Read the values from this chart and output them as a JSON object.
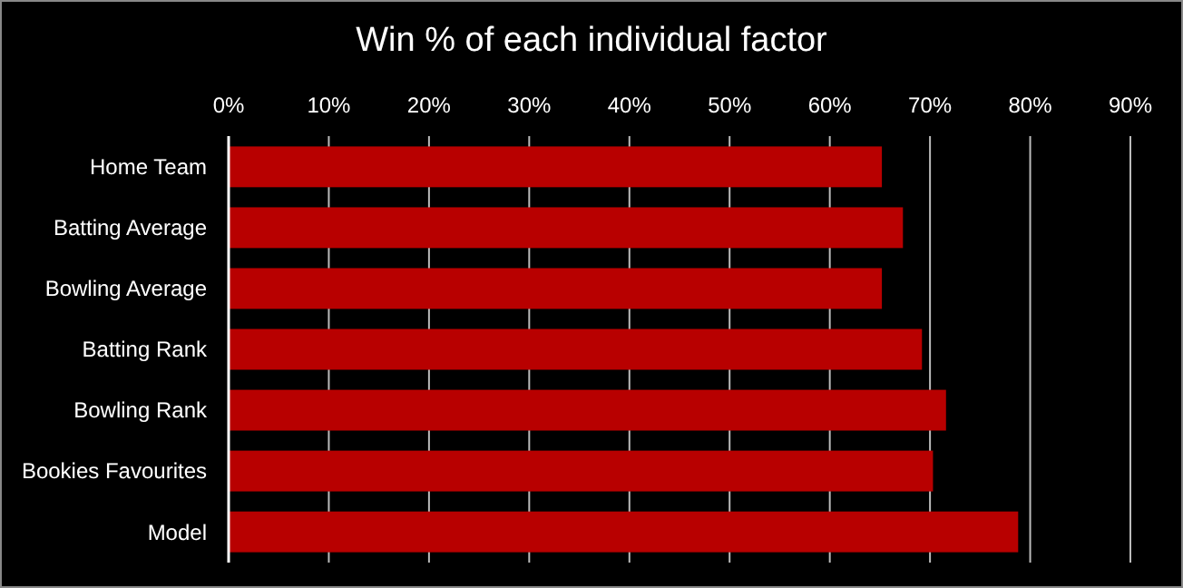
{
  "chart_data": {
    "type": "bar",
    "orientation": "horizontal",
    "title": "Win % of each individual factor",
    "categories": [
      "Home Team",
      "Batting Average",
      "Bowling Average",
      "Batting Rank",
      "Bowling Rank",
      "Bookies Favourites",
      "Model"
    ],
    "values": [
      65.2,
      67.3,
      65.2,
      69.2,
      71.6,
      70.3,
      78.8
    ],
    "color": "#b80000",
    "xlim": [
      0,
      90
    ],
    "xticks": [
      {
        "value": 0,
        "label": "0%"
      },
      {
        "value": 10,
        "label": "10%"
      },
      {
        "value": 20,
        "label": "20%"
      },
      {
        "value": 30,
        "label": "30%"
      },
      {
        "value": 40,
        "label": "40%"
      },
      {
        "value": 50,
        "label": "50%"
      },
      {
        "value": 60,
        "label": "60%"
      },
      {
        "value": 70,
        "label": "70%"
      },
      {
        "value": 80,
        "label": "80%"
      },
      {
        "value": 90,
        "label": "90%"
      }
    ],
    "grid": "x"
  }
}
